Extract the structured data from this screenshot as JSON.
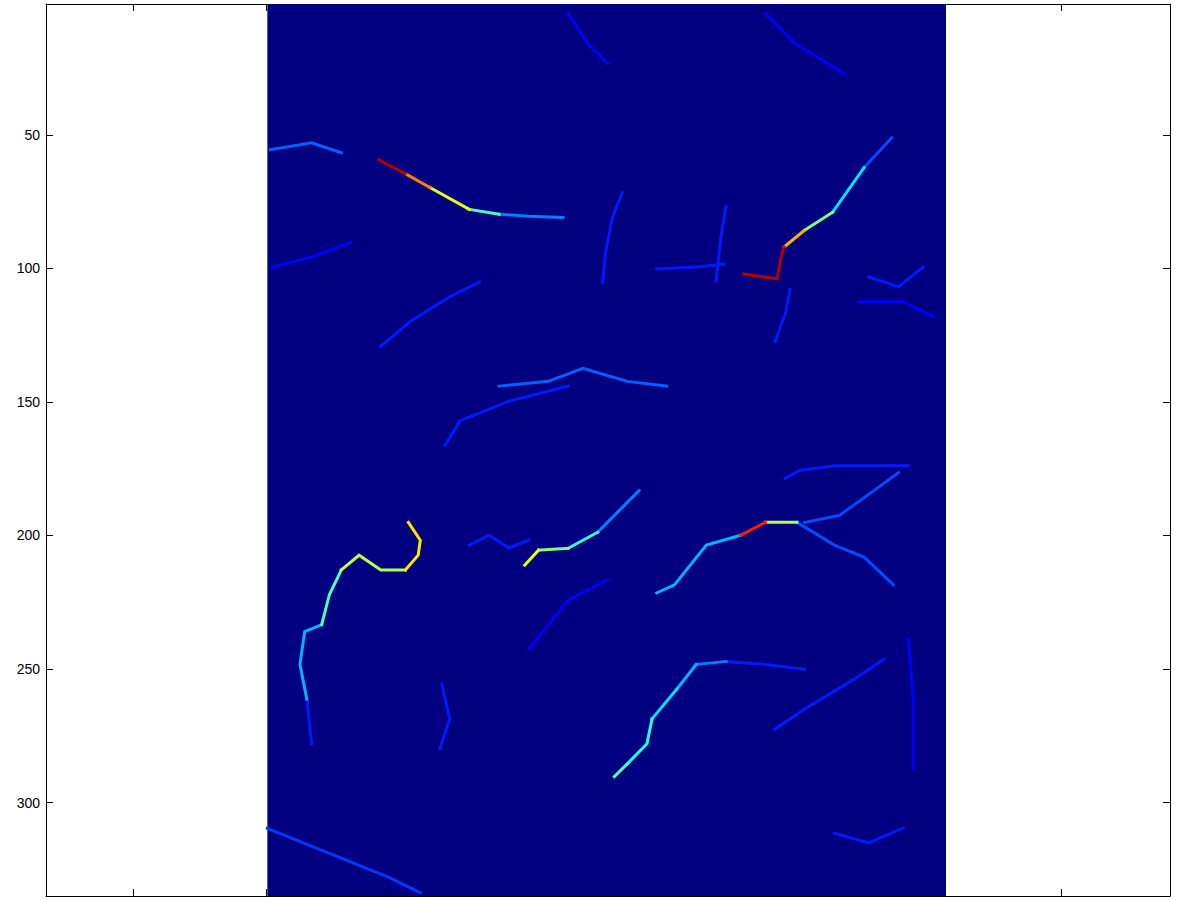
{
  "chart_data": {
    "type": "image",
    "xlim": [
      -83,
      341
    ],
    "ylim": [
      1,
      335
    ],
    "xticks": [
      -50,
      0,
      50,
      100,
      150,
      200,
      250,
      300
    ],
    "yticks": [
      50,
      100,
      150,
      200,
      250,
      300
    ],
    "tick_labels": "y",
    "grid": false,
    "image_x": [
      0.5,
      256.5
    ],
    "image_y": [
      0.5,
      335.5
    ],
    "background_value": 0,
    "color_range": [
      0,
      100
    ],
    "streams": [
      {
        "value": 12,
        "points": [
          [
            2.4,
            99.5
          ],
          [
            17.2,
            95.8
          ],
          [
            32.1,
            90.2
          ]
        ]
      },
      {
        "value": 12,
        "points": [
          [
            114.0,
            4.6
          ],
          [
            121.4,
            15.8
          ],
          [
            128.8,
            23.2
          ]
        ]
      },
      {
        "value": 12,
        "points": [
          [
            188.4,
            4.6
          ],
          [
            199.5,
            15.8
          ],
          [
            218.1,
            27.0
          ]
        ]
      },
      {
        "value": 12,
        "points": [
          [
            223.7,
            112.5
          ],
          [
            240.4,
            112.5
          ],
          [
            251.6,
            118.1
          ]
        ]
      },
      {
        "value": 12,
        "points": [
          [
            242.3,
            239.0
          ],
          [
            244.2,
            261.3
          ],
          [
            244.2,
            287.3
          ]
        ]
      },
      {
        "value": 12,
        "points": [
          [
            99.1,
            242.7
          ],
          [
            114.0,
            224.1
          ],
          [
            128.8,
            216.7
          ]
        ]
      },
      {
        "value": 15,
        "points": [
          [
            127.0,
            105.1
          ],
          [
            128.1,
            93.9
          ],
          [
            130.7,
            80.9
          ],
          [
            134.4,
            71.6
          ]
        ]
      },
      {
        "value": 15,
        "points": [
          [
            169.8,
            104.8
          ],
          [
            171.6,
            88.1
          ],
          [
            173.5,
            76.9
          ]
        ]
      },
      {
        "value": 15,
        "points": [
          [
            147.4,
            100.2
          ],
          [
            162.3,
            99.5
          ],
          [
            172.7,
            98.4
          ]
        ]
      },
      {
        "value": 15,
        "points": [
          [
            192.1,
            127.4
          ],
          [
            196.1,
            116.2
          ],
          [
            197.6,
            108.0
          ]
        ]
      },
      {
        "value": 15,
        "points": [
          [
            227.4,
            103.2
          ],
          [
            238.6,
            106.9
          ],
          [
            247.9,
            99.5
          ]
        ]
      },
      {
        "value": 15,
        "points": [
          [
            67.5,
            166.4
          ],
          [
            73.1,
            157.1
          ],
          [
            91.7,
            149.7
          ],
          [
            113.9,
            144.1
          ]
        ]
      },
      {
        "value": 15,
        "points": [
          [
            43.3,
            129.2
          ],
          [
            54.4,
            119.9
          ],
          [
            69.3,
            110.6
          ],
          [
            80.5,
            105.1
          ]
        ]
      },
      {
        "value": 15,
        "points": [
          [
            195.8,
            178.7
          ],
          [
            201.3,
            175.7
          ],
          [
            214.4,
            173.9
          ],
          [
            242.3,
            173.9
          ]
        ]
      },
      {
        "value": 15,
        "points": [
          [
            76.8,
            203.6
          ],
          [
            84.2,
            199.9
          ],
          [
            91.6,
            204.7
          ],
          [
            99.1,
            201.8
          ]
        ]
      },
      {
        "value": 15,
        "points": [
          [
            66.3,
            255.7
          ],
          [
            69.3,
            268.7
          ],
          [
            65.6,
            279.9
          ]
        ]
      },
      {
        "value": 15,
        "points": [
          [
            214.4,
            311.5
          ],
          [
            227.4,
            315.1
          ],
          [
            240.4,
            309.5
          ]
        ]
      },
      {
        "value": 15,
        "points": [
          [
            192.1,
            272.5
          ],
          [
            203.2,
            265.0
          ],
          [
            221.8,
            253.9
          ],
          [
            233.0,
            246.4
          ]
        ]
      },
      {
        "value": 18,
        "points": [
          [
            0.5,
            309.7
          ],
          [
            28.4,
            320.8
          ],
          [
            47.0,
            328.3
          ],
          [
            58.2,
            333.8
          ]
        ]
      },
      {
        "value": 22,
        "points": [
          [
            1.6,
            55.6
          ],
          [
            17.2,
            53.0
          ],
          [
            28.4,
            56.7
          ]
        ]
      },
      {
        "value": 22,
        "points": [
          [
            87.9,
            144.1
          ],
          [
            106.5,
            142.3
          ],
          [
            119.5,
            137.4
          ],
          [
            136.3,
            142.3
          ],
          [
            151.2,
            144.1
          ]
        ]
      },
      {
        "value": 20,
        "points": [
          [
            236.0,
            51.1
          ],
          [
            225.6,
            62.3
          ]
        ]
      },
      {
        "value": 35,
        "points": [
          [
            225.6,
            62.3
          ],
          [
            213.7,
            79.0
          ]
        ]
      },
      {
        "value": 50,
        "points": [
          [
            213.7,
            79.0
          ],
          [
            203.2,
            85.7
          ]
        ]
      },
      {
        "value": 70,
        "points": [
          [
            203.2,
            85.7
          ],
          [
            195.4,
            92.0
          ]
        ]
      },
      {
        "value": 95,
        "points": [
          [
            195.4,
            92.0
          ],
          [
            194.3,
            95.8
          ],
          [
            192.8,
            103.9
          ],
          [
            180.2,
            102.1
          ]
        ]
      },
      {
        "value": 25,
        "points": [
          [
            112.0,
            80.9
          ],
          [
            99.0,
            80.5
          ],
          [
            87.9,
            79.7
          ]
        ]
      },
      {
        "value": 45,
        "points": [
          [
            87.9,
            79.7
          ],
          [
            76.7,
            77.9
          ]
        ]
      },
      {
        "value": 60,
        "points": [
          [
            76.7,
            77.9
          ],
          [
            61.8,
            69.7
          ]
        ]
      },
      {
        "value": 75,
        "points": [
          [
            61.8,
            69.7
          ],
          [
            52.5,
            64.5
          ]
        ]
      },
      {
        "value": 95,
        "points": [
          [
            52.5,
            64.5
          ],
          [
            42.5,
            59.3
          ]
        ]
      },
      {
        "value": 15,
        "points": [
          [
            15.4,
            261.3
          ],
          [
            17.2,
            278.0
          ]
        ]
      },
      {
        "value": 30,
        "points": [
          [
            21.0,
            233.4
          ],
          [
            14.6,
            236.0
          ],
          [
            12.8,
            248.3
          ],
          [
            15.4,
            261.3
          ]
        ]
      },
      {
        "value": 45,
        "points": [
          [
            28.4,
            212.9
          ],
          [
            23.9,
            222.2
          ],
          [
            21.0,
            233.4
          ]
        ]
      },
      {
        "value": 55,
        "points": [
          [
            52.6,
            212.9
          ],
          [
            43.3,
            212.9
          ],
          [
            35.1,
            207.4
          ],
          [
            28.4,
            212.9
          ]
        ]
      },
      {
        "value": 65,
        "points": [
          [
            53.7,
            195.1
          ],
          [
            58.2,
            201.8
          ],
          [
            57.4,
            207.4
          ],
          [
            52.6,
            212.9
          ]
        ]
      },
      {
        "value": 25,
        "points": [
          [
            140.7,
            183.2
          ],
          [
            125.1,
            198.8
          ]
        ]
      },
      {
        "value": 42,
        "points": [
          [
            125.1,
            198.8
          ],
          [
            114.0,
            204.8
          ]
        ]
      },
      {
        "value": 50,
        "points": [
          [
            114.0,
            204.8
          ],
          [
            102.8,
            205.5
          ]
        ]
      },
      {
        "value": 60,
        "points": [
          [
            102.8,
            205.5
          ],
          [
            97.6,
            211.1
          ]
        ]
      },
      {
        "value": 20,
        "points": [
          [
            200.3,
            195.1
          ],
          [
            214.4,
            203.6
          ],
          [
            225.6,
            208.1
          ],
          [
            236.7,
            218.5
          ]
        ]
      },
      {
        "value": 20,
        "points": [
          [
            203.2,
            195.1
          ],
          [
            216.3,
            192.5
          ],
          [
            229.3,
            183.2
          ],
          [
            238.6,
            176.5
          ]
        ]
      },
      {
        "value": 30,
        "points": [
          [
            179.1,
            199.9
          ],
          [
            166.1,
            203.6
          ],
          [
            154.1,
            218.5
          ],
          [
            147.4,
            221.5
          ]
        ]
      },
      {
        "value": 55,
        "points": [
          [
            188.4,
            195.1
          ],
          [
            200.3,
            195.1
          ]
        ]
      },
      {
        "value": 85,
        "points": [
          [
            179.1,
            199.9
          ],
          [
            188.4,
            195.1
          ]
        ]
      },
      {
        "value": 15,
        "points": [
          [
            173.5,
            247.2
          ],
          [
            188.4,
            248.3
          ],
          [
            203.2,
            250.1
          ]
        ]
      },
      {
        "value": 25,
        "points": [
          [
            162.3,
            248.3
          ],
          [
            173.5,
            247.2
          ]
        ]
      },
      {
        "value": 30,
        "points": [
          [
            154.9,
            257.6
          ],
          [
            162.3,
            248.3
          ]
        ]
      },
      {
        "value": 35,
        "points": [
          [
            145.6,
            268.7
          ],
          [
            154.9,
            257.6
          ]
        ]
      },
      {
        "value": 40,
        "points": [
          [
            136.3,
            285.5
          ],
          [
            143.7,
            278.0
          ],
          [
            145.6,
            268.7
          ]
        ]
      },
      {
        "value": 45,
        "points": [
          [
            131.4,
            290.3
          ],
          [
            136.3,
            285.5
          ]
        ]
      }
    ]
  }
}
